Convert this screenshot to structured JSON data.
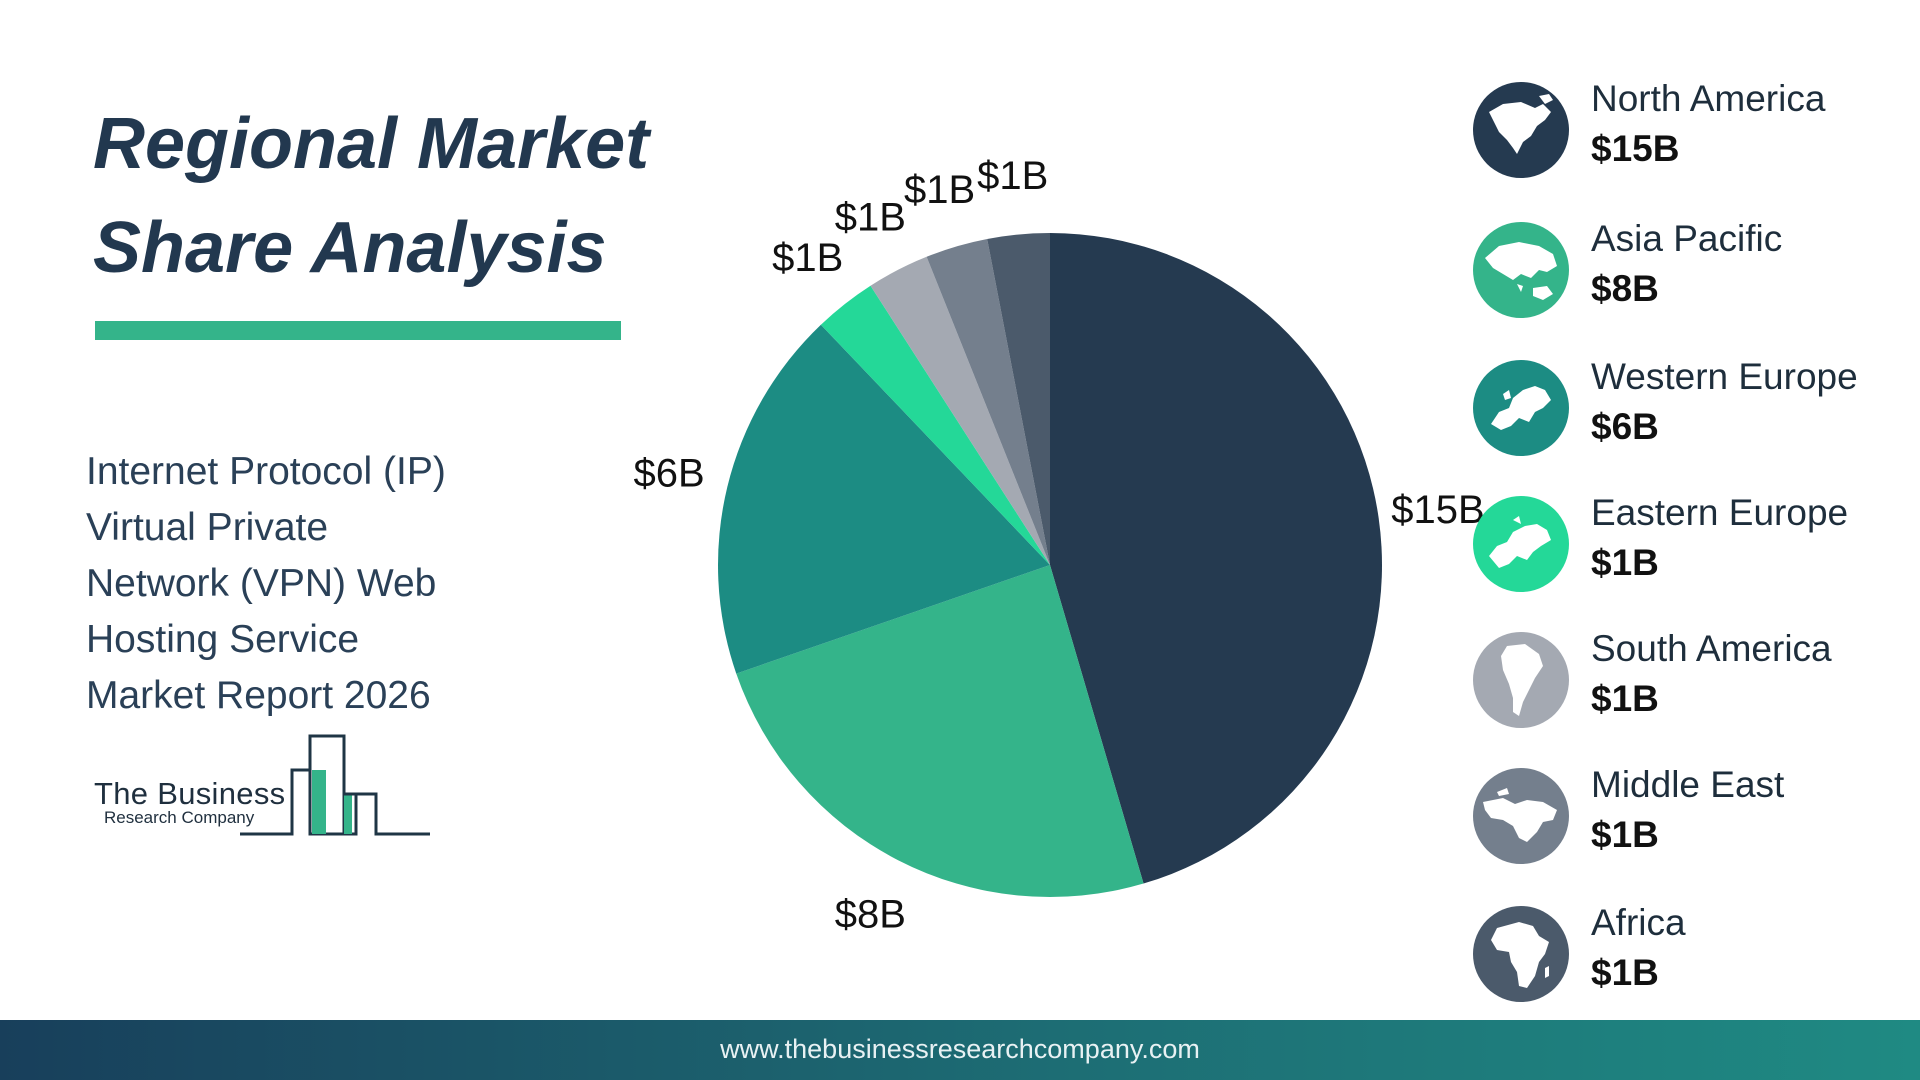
{
  "title": {
    "line1": "Regional Market",
    "line2": "Share Analysis"
  },
  "subtitle": {
    "lines": [
      "Internet Protocol (IP)",
      "Virtual Private",
      "Network (VPN) Web",
      "Hosting Service",
      "Market Report 2026"
    ]
  },
  "logo": {
    "name": "The Business",
    "tagline": "Research Company"
  },
  "chart_data": {
    "type": "pie",
    "title": "",
    "unit": "$B",
    "start_angle_deg": 0,
    "direction": "clockwise",
    "categories": [
      "North America",
      "Asia Pacific",
      "Western Europe",
      "Eastern Europe",
      "South America",
      "Middle East",
      "Africa"
    ],
    "values": [
      15,
      8,
      6,
      1,
      1,
      1,
      1
    ],
    "labels": [
      "$15B",
      "$8B",
      "$6B",
      "$1B",
      "$1B",
      "$1B",
      "$1B"
    ],
    "colors": [
      "#253a50",
      "#34b48a",
      "#1c8c83",
      "#24d898",
      "#a4a9b2",
      "#747f8d",
      "#4b5a6b"
    ],
    "legend_position": "right"
  },
  "legend": [
    {
      "name": "North America",
      "value": "$15B",
      "icon": "north-america-globe-icon",
      "color": "#253a50"
    },
    {
      "name": "Asia Pacific",
      "value": "$8B",
      "icon": "asia-pacific-globe-icon",
      "color": "#34b48a"
    },
    {
      "name": "Western Europe",
      "value": "$6B",
      "icon": "western-europe-globe-icon",
      "color": "#1c8c83"
    },
    {
      "name": "Eastern Europe",
      "value": "$1B",
      "icon": "eastern-europe-globe-icon",
      "color": "#24d898"
    },
    {
      "name": "South America",
      "value": "$1B",
      "icon": "south-america-globe-icon",
      "color": "#a4a9b2"
    },
    {
      "name": "Middle East",
      "value": "$1B",
      "icon": "middle-east-globe-icon",
      "color": "#747f8d"
    },
    {
      "name": "Africa",
      "value": "$1B",
      "icon": "africa-globe-icon",
      "color": "#4b5a6b"
    }
  ],
  "footer": {
    "url": "www.thebusinessresearchcompany.com"
  }
}
